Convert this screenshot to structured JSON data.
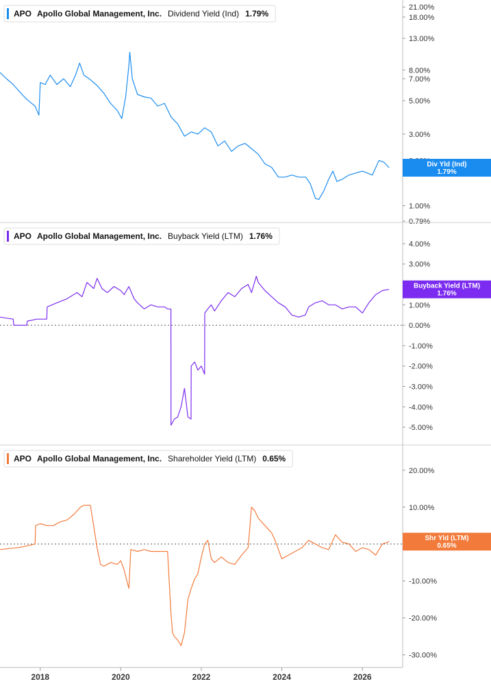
{
  "chart_data": [
    {
      "type": "line",
      "panel": 0,
      "ticker": "APO",
      "company": "Apollo Global Management, Inc.",
      "metric": "Dividend Yield (Ind)",
      "last_value_label": "1.79%",
      "tag_line1": "Div Yld (Ind)",
      "tag_line2": "1.79%",
      "color": "#1a8cf0",
      "tag_color": "#1a8cf0",
      "y_scale": "log",
      "ylim": [
        0.79,
        21.5
      ],
      "yticks": [
        {
          "value": 21,
          "label": "21.00%"
        },
        {
          "value": 18,
          "label": "18.00%"
        },
        {
          "value": 13,
          "label": "13.00%"
        },
        {
          "value": 8,
          "label": "8.00%"
        },
        {
          "value": 7,
          "label": "7.00%"
        },
        {
          "value": 5,
          "label": "5.00%"
        },
        {
          "value": 3,
          "label": "3.00%"
        },
        {
          "value": 2,
          "label": "2.00%"
        },
        {
          "value": 1,
          "label": "1.00%"
        },
        {
          "value": 0.79,
          "label": "0.79%"
        }
      ],
      "zero_line": false,
      "series": [
        {
          "x": [
            "2017-01-01",
            "2017-03-01",
            "2017-05-01",
            "2017-07-01",
            "2017-09-01",
            "2017-11-15",
            "2017-12-20",
            "2018-01-01",
            "2018-02-15",
            "2018-04-01",
            "2018-06-01",
            "2018-08-01",
            "2018-10-01",
            "2018-11-20",
            "2018-12-24",
            "2019-02-01",
            "2019-04-01",
            "2019-06-01",
            "2019-08-01",
            "2019-10-01",
            "2019-12-01",
            "2020-01-10",
            "2020-02-15",
            "2020-03-15",
            "2020-03-23",
            "2020-04-15",
            "2020-06-01",
            "2020-08-01",
            "2020-10-01",
            "2020-12-01",
            "2021-02-01",
            "2021-04-01",
            "2021-06-01",
            "2021-08-01",
            "2021-10-01",
            "2021-12-01",
            "2022-02-01",
            "2022-04-01",
            "2022-06-01",
            "2022-08-01",
            "2022-10-01",
            "2022-12-01",
            "2023-02-01",
            "2023-04-01",
            "2023-06-01",
            "2023-08-01",
            "2023-10-01",
            "2023-12-01",
            "2024-02-01",
            "2024-04-01",
            "2024-06-01",
            "2024-08-05",
            "2024-09-15",
            "2024-11-01",
            "2024-12-01",
            "2025-01-15",
            "2025-03-01",
            "2025-04-08",
            "2025-05-15",
            "2025-07-01",
            "2025-09-01",
            "2025-11-01",
            "2026-01-01",
            "2026-02-15",
            "2026-04-01",
            "2026-06-01",
            "2026-07-15",
            "2026-08-31"
          ],
          "y": [
            7.7,
            7.0,
            6.4,
            5.7,
            5.1,
            4.6,
            4.0,
            6.6,
            6.4,
            7.4,
            6.4,
            7.0,
            6.2,
            7.5,
            8.9,
            7.4,
            6.9,
            6.3,
            5.6,
            4.8,
            4.3,
            3.8,
            5.3,
            8.6,
            10.5,
            7.0,
            5.5,
            5.3,
            5.2,
            4.6,
            4.8,
            3.9,
            3.5,
            2.9,
            3.1,
            3.0,
            3.3,
            3.1,
            2.5,
            2.7,
            2.3,
            2.5,
            2.6,
            2.4,
            2.2,
            1.9,
            1.8,
            1.55,
            1.55,
            1.6,
            1.55,
            1.55,
            1.4,
            1.12,
            1.1,
            1.25,
            1.5,
            1.7,
            1.45,
            1.5,
            1.6,
            1.65,
            1.7,
            1.65,
            1.6,
            2.0,
            1.95,
            1.79
          ]
        }
      ]
    },
    {
      "type": "line",
      "panel": 1,
      "ticker": "APO",
      "company": "Apollo Global Management, Inc.",
      "metric": "Buyback Yield (LTM)",
      "last_value_label": "1.76%",
      "tag_line1": "Buyback Yield (LTM)",
      "tag_line2": "1.76%",
      "color": "#7b2cf0",
      "tag_color": "#7b2cf0",
      "y_scale": "linear",
      "ylim": [
        -5.2,
        4.2
      ],
      "yticks": [
        {
          "value": 4,
          "label": "4.00%"
        },
        {
          "value": 3,
          "label": "3.00%"
        },
        {
          "value": 1,
          "label": "1.00%"
        },
        {
          "value": 0,
          "label": "0.00%"
        },
        {
          "value": -1,
          "label": "-1.00%"
        },
        {
          "value": -2,
          "label": "-2.00%"
        },
        {
          "value": -3,
          "label": "-3.00%"
        },
        {
          "value": -4,
          "label": "-4.00%"
        },
        {
          "value": -5,
          "label": "-5.00%"
        }
      ],
      "zero_line": true,
      "series": [
        {
          "x": [
            "2017-01-01",
            "2017-03-01",
            "2017-05-01",
            "2017-05-05",
            "2017-07-01",
            "2017-09-01",
            "2017-09-05",
            "2017-12-01",
            "2018-03-01",
            "2018-03-05",
            "2018-06-01",
            "2018-09-01",
            "2018-12-01",
            "2019-01-15",
            "2019-03-01",
            "2019-05-01",
            "2019-06-01",
            "2019-07-15",
            "2019-09-01",
            "2019-11-01",
            "2020-01-01",
            "2020-02-01",
            "2020-03-15",
            "2020-05-01",
            "2020-06-01",
            "2020-08-01",
            "2020-10-01",
            "2020-12-01",
            "2021-02-01",
            "2021-03-01",
            "2021-03-31",
            "2021-04-01",
            "2021-05-01",
            "2021-06-01",
            "2021-07-01",
            "2021-08-01",
            "2021-09-01",
            "2021-09-30",
            "2021-10-01",
            "2021-11-01",
            "2021-12-01",
            "2022-01-01",
            "2022-01-31",
            "2022-02-01",
            "2022-03-01",
            "2022-04-01",
            "2022-05-01",
            "2022-07-01",
            "2022-09-01",
            "2022-11-01",
            "2023-01-01",
            "2023-03-01",
            "2023-04-01",
            "2023-05-15",
            "2023-06-01",
            "2023-08-01",
            "2023-10-01",
            "2023-12-01",
            "2024-02-01",
            "2024-04-01",
            "2024-06-01",
            "2024-08-01",
            "2024-09-01",
            "2024-11-01",
            "2025-01-01",
            "2025-03-01",
            "2025-05-01",
            "2025-07-01",
            "2025-09-01",
            "2025-11-01",
            "2026-01-01",
            "2026-03-01",
            "2026-05-01",
            "2026-07-01",
            "2026-08-31"
          ],
          "y": [
            0.4,
            0.35,
            0.3,
            0.0,
            0.0,
            0.0,
            0.2,
            0.3,
            0.3,
            0.9,
            1.1,
            1.3,
            1.6,
            1.4,
            2.1,
            1.8,
            2.3,
            1.8,
            1.6,
            1.9,
            1.7,
            1.5,
            1.9,
            1.3,
            1.1,
            0.8,
            1.0,
            0.9,
            0.9,
            0.8,
            0.8,
            -4.9,
            -4.6,
            -4.5,
            -4.0,
            -3.1,
            -4.5,
            -4.6,
            -2.0,
            -1.8,
            -2.2,
            -2.0,
            -2.4,
            0.6,
            0.8,
            1.0,
            0.7,
            1.2,
            1.6,
            1.4,
            1.8,
            2.0,
            1.6,
            2.4,
            2.1,
            1.7,
            1.4,
            1.1,
            0.9,
            0.5,
            0.4,
            0.5,
            0.9,
            1.1,
            1.2,
            1.0,
            1.0,
            0.8,
            0.9,
            0.9,
            0.6,
            1.1,
            1.5,
            1.7,
            1.76
          ]
        }
      ]
    },
    {
      "type": "line",
      "panel": 2,
      "ticker": "APO",
      "company": "Apollo Global Management, Inc.",
      "metric": "Shareholder Yield (LTM)",
      "last_value_label": "0.65%",
      "tag_line1": "Shr Yld (LTM)",
      "tag_line2": "0.65%",
      "color": "#f27a3b",
      "tag_color": "#f27a3b",
      "y_scale": "linear",
      "ylim": [
        -31,
        22
      ],
      "yticks": [
        {
          "value": 20,
          "label": "20.00%"
        },
        {
          "value": 10,
          "label": "10.00%"
        },
        {
          "value": 0,
          "label": "0.00%"
        },
        {
          "value": -10,
          "label": "-10.00%"
        },
        {
          "value": -20,
          "label": "-20.00%"
        },
        {
          "value": -30,
          "label": "-30.00%"
        }
      ],
      "zero_line": true,
      "series": [
        {
          "x": [
            "2017-01-01",
            "2017-03-01",
            "2017-05-01",
            "2017-07-01",
            "2017-09-01",
            "2017-11-15",
            "2017-11-20",
            "2018-01-01",
            "2018-03-01",
            "2018-05-01",
            "2018-07-01",
            "2018-09-01",
            "2018-11-01",
            "2019-01-01",
            "2019-02-01",
            "2019-04-01",
            "2019-06-01",
            "2019-07-01",
            "2019-08-01",
            "2019-10-01",
            "2019-12-01",
            "2020-01-01",
            "2020-02-01",
            "2020-03-01",
            "2020-03-15",
            "2020-04-01",
            "2020-06-01",
            "2020-08-01",
            "2020-10-01",
            "2020-12-01",
            "2021-02-01",
            "2021-03-01",
            "2021-04-01",
            "2021-04-15",
            "2021-05-01",
            "2021-06-01",
            "2021-07-01",
            "2021-08-01",
            "2021-09-01",
            "2021-10-01",
            "2021-11-01",
            "2021-12-01",
            "2022-01-01",
            "2022-02-01",
            "2022-03-01",
            "2022-04-01",
            "2022-05-01",
            "2022-07-01",
            "2022-09-01",
            "2022-11-01",
            "2023-01-01",
            "2023-03-01",
            "2023-04-01",
            "2023-05-01",
            "2023-06-01",
            "2023-08-01",
            "2023-10-01",
            "2023-11-01",
            "2024-01-01",
            "2024-03-01",
            "2024-05-01",
            "2024-07-01",
            "2024-09-01",
            "2024-11-01",
            "2025-01-01",
            "2025-03-01",
            "2025-05-01",
            "2025-07-01",
            "2025-09-01",
            "2025-11-01",
            "2026-01-01",
            "2026-03-01",
            "2026-05-01",
            "2026-07-01",
            "2026-08-31"
          ],
          "y": [
            -1.5,
            -1.3,
            -1.1,
            -0.9,
            -0.5,
            0.0,
            5.0,
            5.5,
            5.0,
            5.0,
            6.0,
            6.5,
            8.0,
            10.0,
            10.5,
            10.5,
            -1.0,
            -5.5,
            -6.0,
            -5.0,
            -5.5,
            -4.5,
            -7.0,
            -10.5,
            -12.0,
            -1.5,
            -2.0,
            -1.5,
            -2.0,
            -2.0,
            -2.0,
            -2.0,
            -19.0,
            -24.0,
            -25.0,
            -26.0,
            -27.5,
            -24.0,
            -15.0,
            -12.0,
            -9.5,
            -8.0,
            -3.5,
            0.0,
            1.0,
            -4.0,
            -5.0,
            -3.5,
            -5.0,
            -5.5,
            -3.0,
            -1.0,
            10.0,
            9.0,
            7.0,
            5.0,
            3.0,
            1.0,
            -4.0,
            -3.0,
            -2.0,
            -1.0,
            1.0,
            0.0,
            -1.0,
            -1.5,
            2.5,
            0.5,
            0.0,
            -2.0,
            -1.0,
            -1.5,
            -3.0,
            0.0,
            0.65
          ]
        }
      ]
    }
  ],
  "x_axis": {
    "ticks": [
      {
        "date": "2018-01-01",
        "label": "2018"
      },
      {
        "date": "2020-01-01",
        "label": "2020"
      },
      {
        "date": "2022-01-01",
        "label": "2022"
      },
      {
        "date": "2024-01-01",
        "label": "2024"
      },
      {
        "date": "2026-01-01",
        "label": "2026"
      }
    ],
    "range": [
      "2017-01-01",
      "2027-01-01"
    ]
  }
}
